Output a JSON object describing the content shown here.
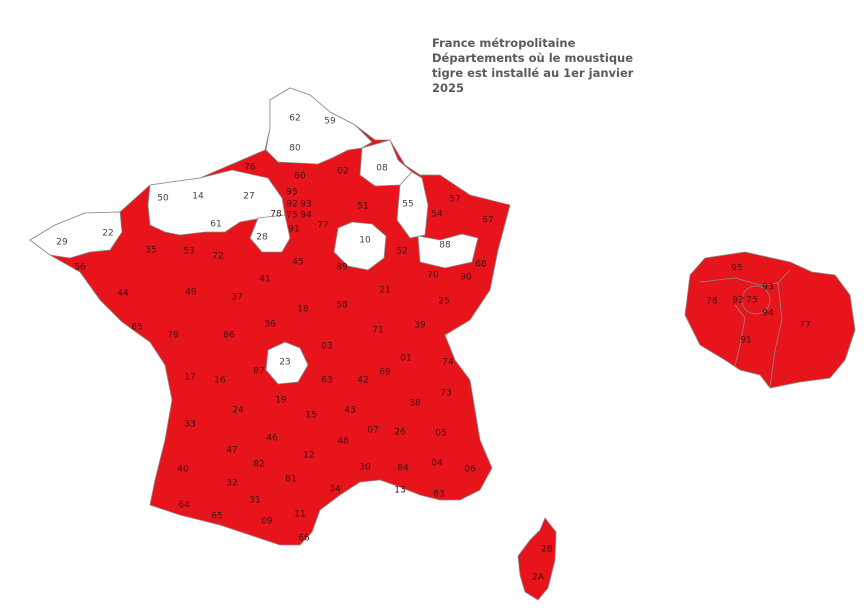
{
  "title": {
    "line1": "France métropolitaine",
    "line2": "Départements où le moustique tigre est installé au 1er janvier 2025"
  },
  "colors": {
    "installed": "#e8141c",
    "not_installed": "#ffffff",
    "border": "#8a8a8a"
  },
  "departments_not_installed": [
    "62",
    "59",
    "80",
    "08",
    "55",
    "50",
    "14",
    "27",
    "61",
    "28",
    "10",
    "88",
    "29",
    "22",
    "23"
  ],
  "departments_installed": [
    "76",
    "60",
    "02",
    "51",
    "57",
    "54",
    "67",
    "95",
    "93",
    "92",
    "75",
    "94",
    "78",
    "91",
    "77",
    "52",
    "68",
    "56",
    "35",
    "53",
    "72",
    "45",
    "89",
    "41",
    "70",
    "90",
    "21",
    "25",
    "44",
    "49",
    "37",
    "18",
    "58",
    "39",
    "85",
    "79",
    "86",
    "36",
    "71",
    "03",
    "01",
    "74",
    "17",
    "16",
    "87",
    "63",
    "69",
    "42",
    "73",
    "24",
    "19",
    "15",
    "43",
    "38",
    "33",
    "07",
    "26",
    "05",
    "46",
    "48",
    "47",
    "12",
    "82",
    "30",
    "84",
    "04",
    "06",
    "40",
    "32",
    "81",
    "34",
    "13",
    "83",
    "64",
    "31",
    "65",
    "09",
    "11",
    "66",
    "2B",
    "2A"
  ],
  "inset_idf": [
    "95",
    "78",
    "92",
    "75",
    "93",
    "94",
    "91",
    "77"
  ]
}
